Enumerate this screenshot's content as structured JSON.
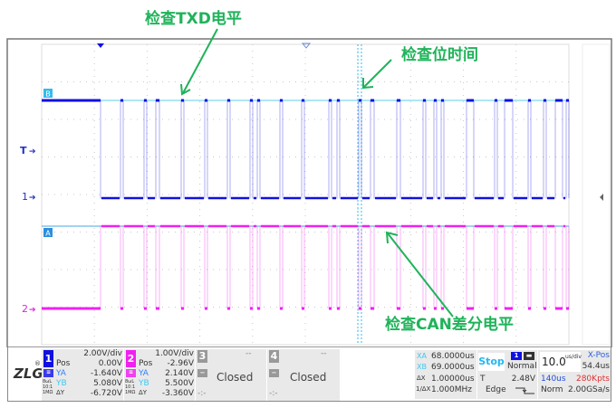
{
  "annotations": {
    "txd": "检查TXD电平",
    "bit_time": "检查位时间",
    "can_diff": "检查CAN差分电平"
  },
  "markers": {
    "b": "B",
    "a": "A",
    "trigger": "T",
    "ch1": "1",
    "ch2": "2"
  },
  "colors": {
    "ch1": "#1010e0",
    "ch2": "#f020f0",
    "cursor": "#33bbee",
    "annotation": "#1fb35a"
  },
  "logo": "ZLG",
  "ch1": {
    "num": "1",
    "vdiv": "2.00V/div",
    "pos_label": "Pos",
    "pos": "0.00V",
    "ya_label": "YA",
    "ya": "-1.640V",
    "yb_label": "YB",
    "yb": "5.080V",
    "dy_label": "ΔY",
    "dy": "-6.720V",
    "coupling": "8ωL 10:1 1MΩ"
  },
  "ch2": {
    "num": "2",
    "vdiv": "1.00V/div",
    "pos_label": "Pos",
    "pos": "-2.96V",
    "ya_label": "YA",
    "ya": "2.140V",
    "yb_label": "YB",
    "yb": "5.500V",
    "dy_label": "ΔY",
    "dy": "-3.360V",
    "coupling": "8ωL 10:1 1MΩ"
  },
  "ch3": {
    "num": "3",
    "status": "Closed"
  },
  "ch4": {
    "num": "4",
    "status": "Closed"
  },
  "cursors": {
    "xa_label": "XA",
    "xa": "68.0000us",
    "xb_label": "XB",
    "xb": "69.0000us",
    "dx_label": "ΔX",
    "dx": "1.00000us",
    "inv_label": "1/ΔX",
    "inv": "1.000MHz"
  },
  "acq": {
    "state": "Stop",
    "mode": "Normal",
    "trig_label": "T",
    "trig_level": "2.48V",
    "trig_type": "Edge"
  },
  "timebase": {
    "value": "10.0",
    "unit": "us/div",
    "xpos_label": "X-Pos",
    "xpos": "54.4us",
    "window": "140us",
    "points": "280Kpts",
    "trig_mode": "Norm",
    "rate": "2.00GSa/s"
  }
}
